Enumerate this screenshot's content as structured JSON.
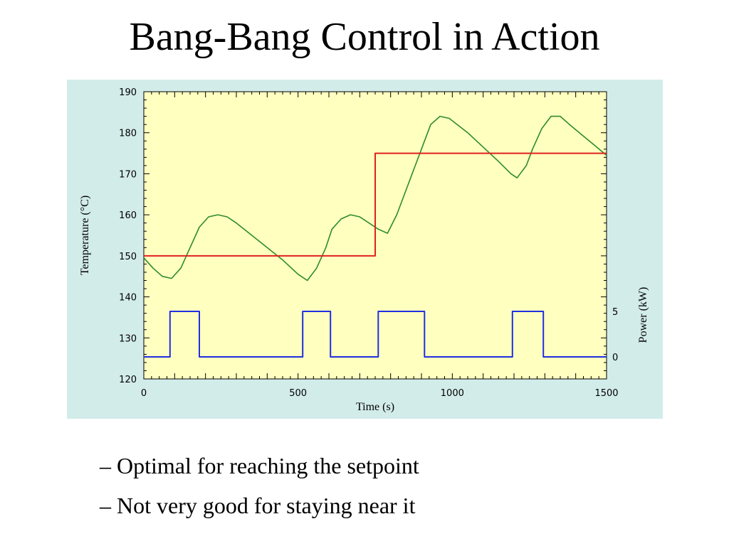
{
  "slide": {
    "title": "Bang-Bang Control in Action",
    "bullets": [
      "– Optimal for reaching the setpoint",
      "– Not very good for staying near it"
    ]
  },
  "chart_data": {
    "type": "line",
    "xlabel": "Time (s)",
    "ylabel": "Temperature (°C)",
    "y2label": "Power (kW)",
    "xlim": [
      0,
      1500
    ],
    "ylim": [
      120,
      190
    ],
    "y2ticks": [
      "0",
      "5"
    ],
    "xticks": [
      0,
      500,
      1000,
      1500
    ],
    "yticks": [
      120,
      130,
      140,
      150,
      160,
      170,
      180,
      190
    ],
    "grid": false,
    "colors": {
      "plot_background": "#ffffc0",
      "panel_background": "#d2ece9",
      "temperature": "#2e8b2e",
      "setpoint": "#e02020",
      "power": "#1f2fe0"
    },
    "series": [
      {
        "key": "temperature",
        "x": [
          0,
          30,
          60,
          90,
          120,
          150,
          180,
          210,
          240,
          270,
          300,
          350,
          400,
          450,
          500,
          530,
          560,
          590,
          610,
          640,
          670,
          700,
          730,
          760,
          790,
          820,
          850,
          880,
          910,
          930,
          960,
          990,
          1050,
          1100,
          1150,
          1190,
          1210,
          1240,
          1260,
          1290,
          1320,
          1350,
          1380,
          1420,
          1460,
          1500
        ],
        "y": [
          149.5,
          147,
          145,
          144.5,
          147,
          152,
          157,
          159.5,
          160,
          159.5,
          158,
          155,
          152,
          149,
          145.5,
          144,
          147,
          152,
          156.5,
          159,
          160,
          159.5,
          158,
          156.5,
          155.5,
          160,
          166,
          172,
          178,
          182,
          184,
          183.5,
          180,
          176.5,
          173,
          170,
          169,
          172,
          176,
          181,
          184,
          184,
          182,
          179.5,
          177,
          174.5
        ]
      },
      {
        "key": "setpoint",
        "x": [
          0,
          750,
          750,
          1500
        ],
        "y": [
          150,
          150,
          175,
          175
        ]
      },
      {
        "key": "power",
        "x": [
          0,
          85,
          85,
          180,
          180,
          515,
          515,
          605,
          605,
          760,
          760,
          910,
          910,
          1195,
          1195,
          1295,
          1295,
          1500
        ],
        "y": [
          0,
          0,
          5,
          5,
          0,
          0,
          5,
          5,
          0,
          0,
          5,
          5,
          0,
          0,
          5,
          5,
          0,
          0
        ]
      }
    ]
  }
}
